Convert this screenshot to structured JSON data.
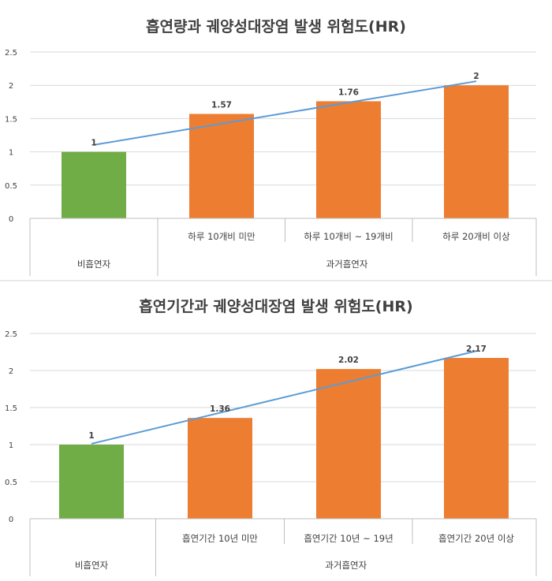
{
  "chart_data": [
    {
      "type": "bar",
      "title": "흡연량과 궤양성대장염 발생 위험도(HR)",
      "categories": [
        "비흡연자",
        "하루 10개비 미만",
        "하루 10개비 ~ 19개비",
        "하루 20개비 이상"
      ],
      "group_labels": [
        "비흡연자",
        "과거흡연자"
      ],
      "values": [
        1,
        1.57,
        1.76,
        2
      ],
      "value_labels": [
        "1",
        "1.57",
        "1.76",
        "2"
      ],
      "ylim": [
        0,
        2.5
      ],
      "yticks": [
        "0",
        "0.5",
        "1",
        "1.5",
        "2",
        "2.5"
      ],
      "trendline": true,
      "grid": true
    },
    {
      "type": "bar",
      "title": "흡연기간과 궤양성대장염 발생 위험도(HR)",
      "categories": [
        "비흡연자",
        "흡연기간 10년 미만",
        "흡연기간 10년 ~ 19년",
        "흡연기간 20년 이상"
      ],
      "group_labels": [
        "비흡연자",
        "과거흡연자"
      ],
      "values": [
        1,
        1.36,
        2.02,
        2.17
      ],
      "value_labels": [
        "1",
        "1.36",
        "2.02",
        "2.17"
      ],
      "ylim": [
        0,
        2.5
      ],
      "yticks": [
        "0",
        "0.5",
        "1",
        "1.5",
        "2",
        "2.5"
      ],
      "trendline": true,
      "grid": true
    }
  ],
  "colors": {
    "never_smoker": "#70ad47",
    "former_smoker": "#ed7d31",
    "trendline": "#5b9bd5",
    "text": "#404040",
    "grid": "#d9d9d9"
  }
}
